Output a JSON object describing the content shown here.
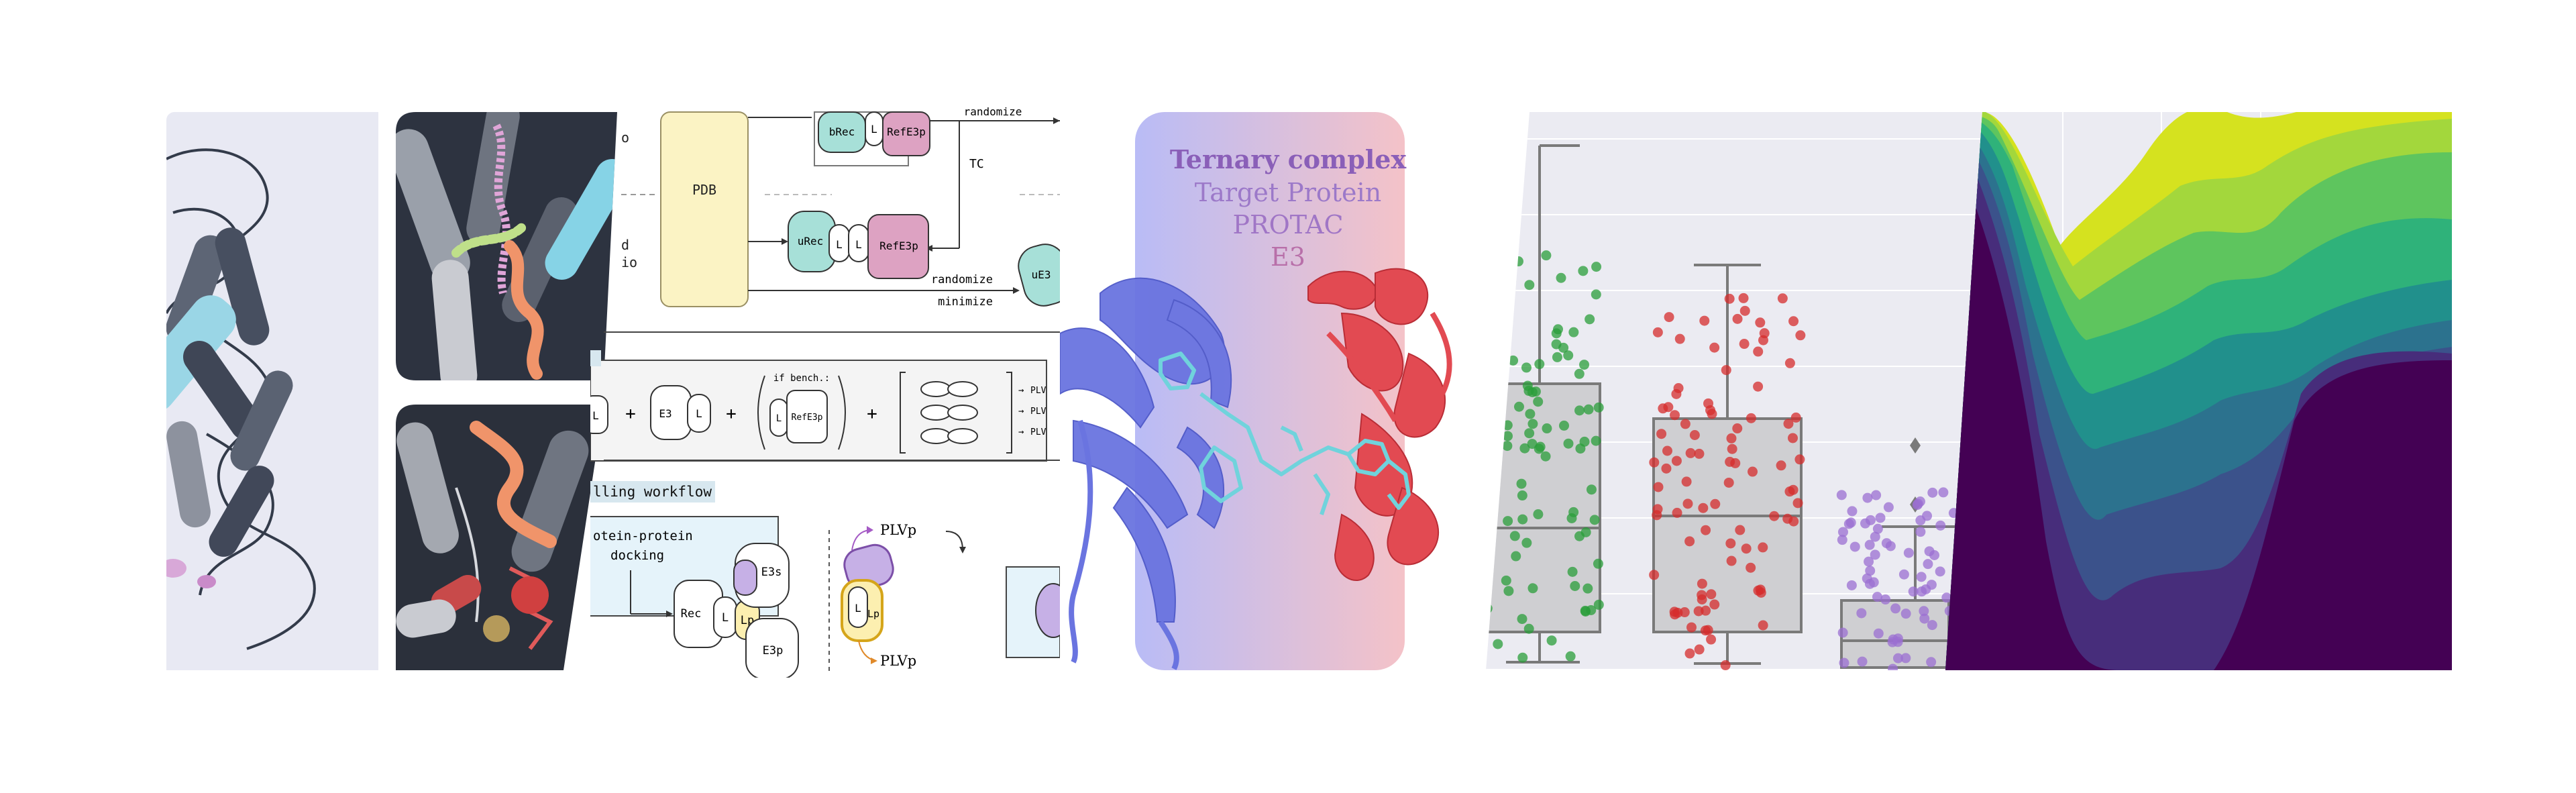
{
  "colors": {
    "ternary_left": "#b9bcf6",
    "ternary_right": "#f4c2c8",
    "target_text": "#9c79c9",
    "protac_text": "#a076c6",
    "e3_text": "#b86fa9",
    "box_fill": "#cfcfd2",
    "green_points": "#2a9d3a",
    "red_points": "#d62c2c",
    "purple_points": "#9b6fd2"
  },
  "ternary": {
    "title": "Ternary complex",
    "line1": "Target Protein",
    "line2": "PROTAC",
    "line3": "E3"
  },
  "workflow": {
    "randomize_top": "randomize",
    "tc": "TC",
    "pdb": "PDB",
    "brec": "bRec",
    "l": "L",
    "refe3p": "RefE3p",
    "urec": "uRec",
    "randomize": "randomize",
    "minimize": "minimize",
    "ue3": "uE3",
    "frag_o": "o",
    "frag_d": "d",
    "frag_io": "io",
    "e3": "E3",
    "plus": "+",
    "if_bench": "if bench.:",
    "plv": "PLV",
    "arrow": "→",
    "modelling_workflow": "lling workflow",
    "ppd_line1": "otein-protein",
    "ppd_line2": "docking",
    "rec": "Rec",
    "lp": "Lp",
    "e3p": "E3p",
    "e3s": "E3s",
    "plvp_top": "PLVp",
    "plvp_bottom": "PLVp"
  }
}
